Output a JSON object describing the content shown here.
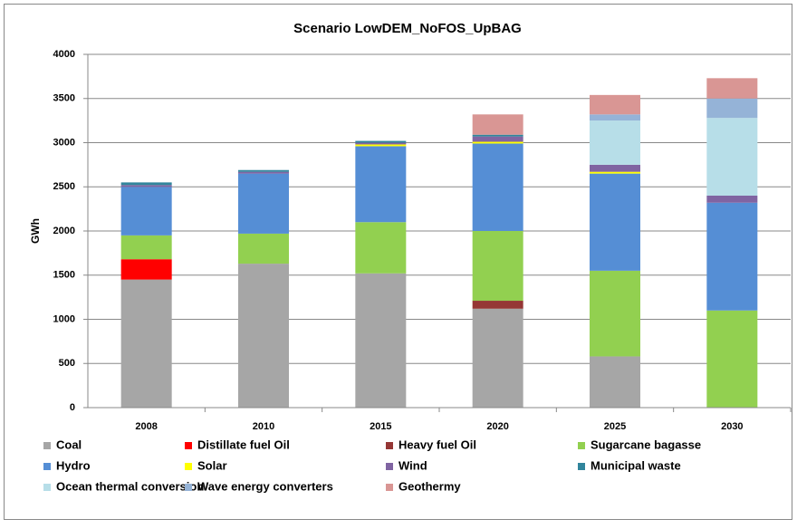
{
  "chart_data": {
    "type": "stacked_bar",
    "title": "Scenario LowDEM_NoFOS_UpBAG",
    "y_label": "GWh",
    "categories": [
      "2008",
      "2010",
      "2015",
      "2020",
      "2025",
      "2030"
    ],
    "series": [
      {
        "name": "Coal",
        "color": "#a6a6a6",
        "values": [
          1450,
          1630,
          1520,
          1120,
          580,
          0
        ]
      },
      {
        "name": "Distillate fuel Oil",
        "color": "#ff0000",
        "values": [
          230,
          0,
          0,
          0,
          0,
          0
        ]
      },
      {
        "name": "Heavy fuel Oil",
        "color": "#953735",
        "values": [
          0,
          0,
          0,
          90,
          0,
          0
        ]
      },
      {
        "name": "Sugarcane bagasse",
        "color": "#92d050",
        "values": [
          270,
          340,
          580,
          790,
          970,
          1100
        ]
      },
      {
        "name": "Hydro",
        "color": "#558ed5",
        "values": [
          550,
          680,
          860,
          990,
          1100,
          1220
        ]
      },
      {
        "name": "Solar",
        "color": "#ffff00",
        "values": [
          0,
          0,
          20,
          20,
          20,
          0
        ]
      },
      {
        "name": "Wind",
        "color": "#8064a2",
        "values": [
          20,
          20,
          20,
          60,
          80,
          80
        ]
      },
      {
        "name": "Municipal waste",
        "color": "#31859c",
        "values": [
          30,
          20,
          20,
          20,
          0,
          0
        ]
      },
      {
        "name": "Ocean thermal conversion",
        "color": "#b7dee8",
        "values": [
          0,
          0,
          0,
          0,
          500,
          880
        ]
      },
      {
        "name": "Wave energy converters",
        "color": "#95b3d7",
        "values": [
          0,
          0,
          0,
          0,
          70,
          220
        ]
      },
      {
        "name": "Geothermy",
        "color": "#d99694",
        "values": [
          0,
          0,
          0,
          230,
          220,
          230
        ]
      }
    ],
    "ylim": [
      0,
      4000
    ],
    "yticks": [
      0,
      500,
      1000,
      1500,
      2000,
      2500,
      3000,
      3500,
      4000
    ],
    "grid": true
  }
}
